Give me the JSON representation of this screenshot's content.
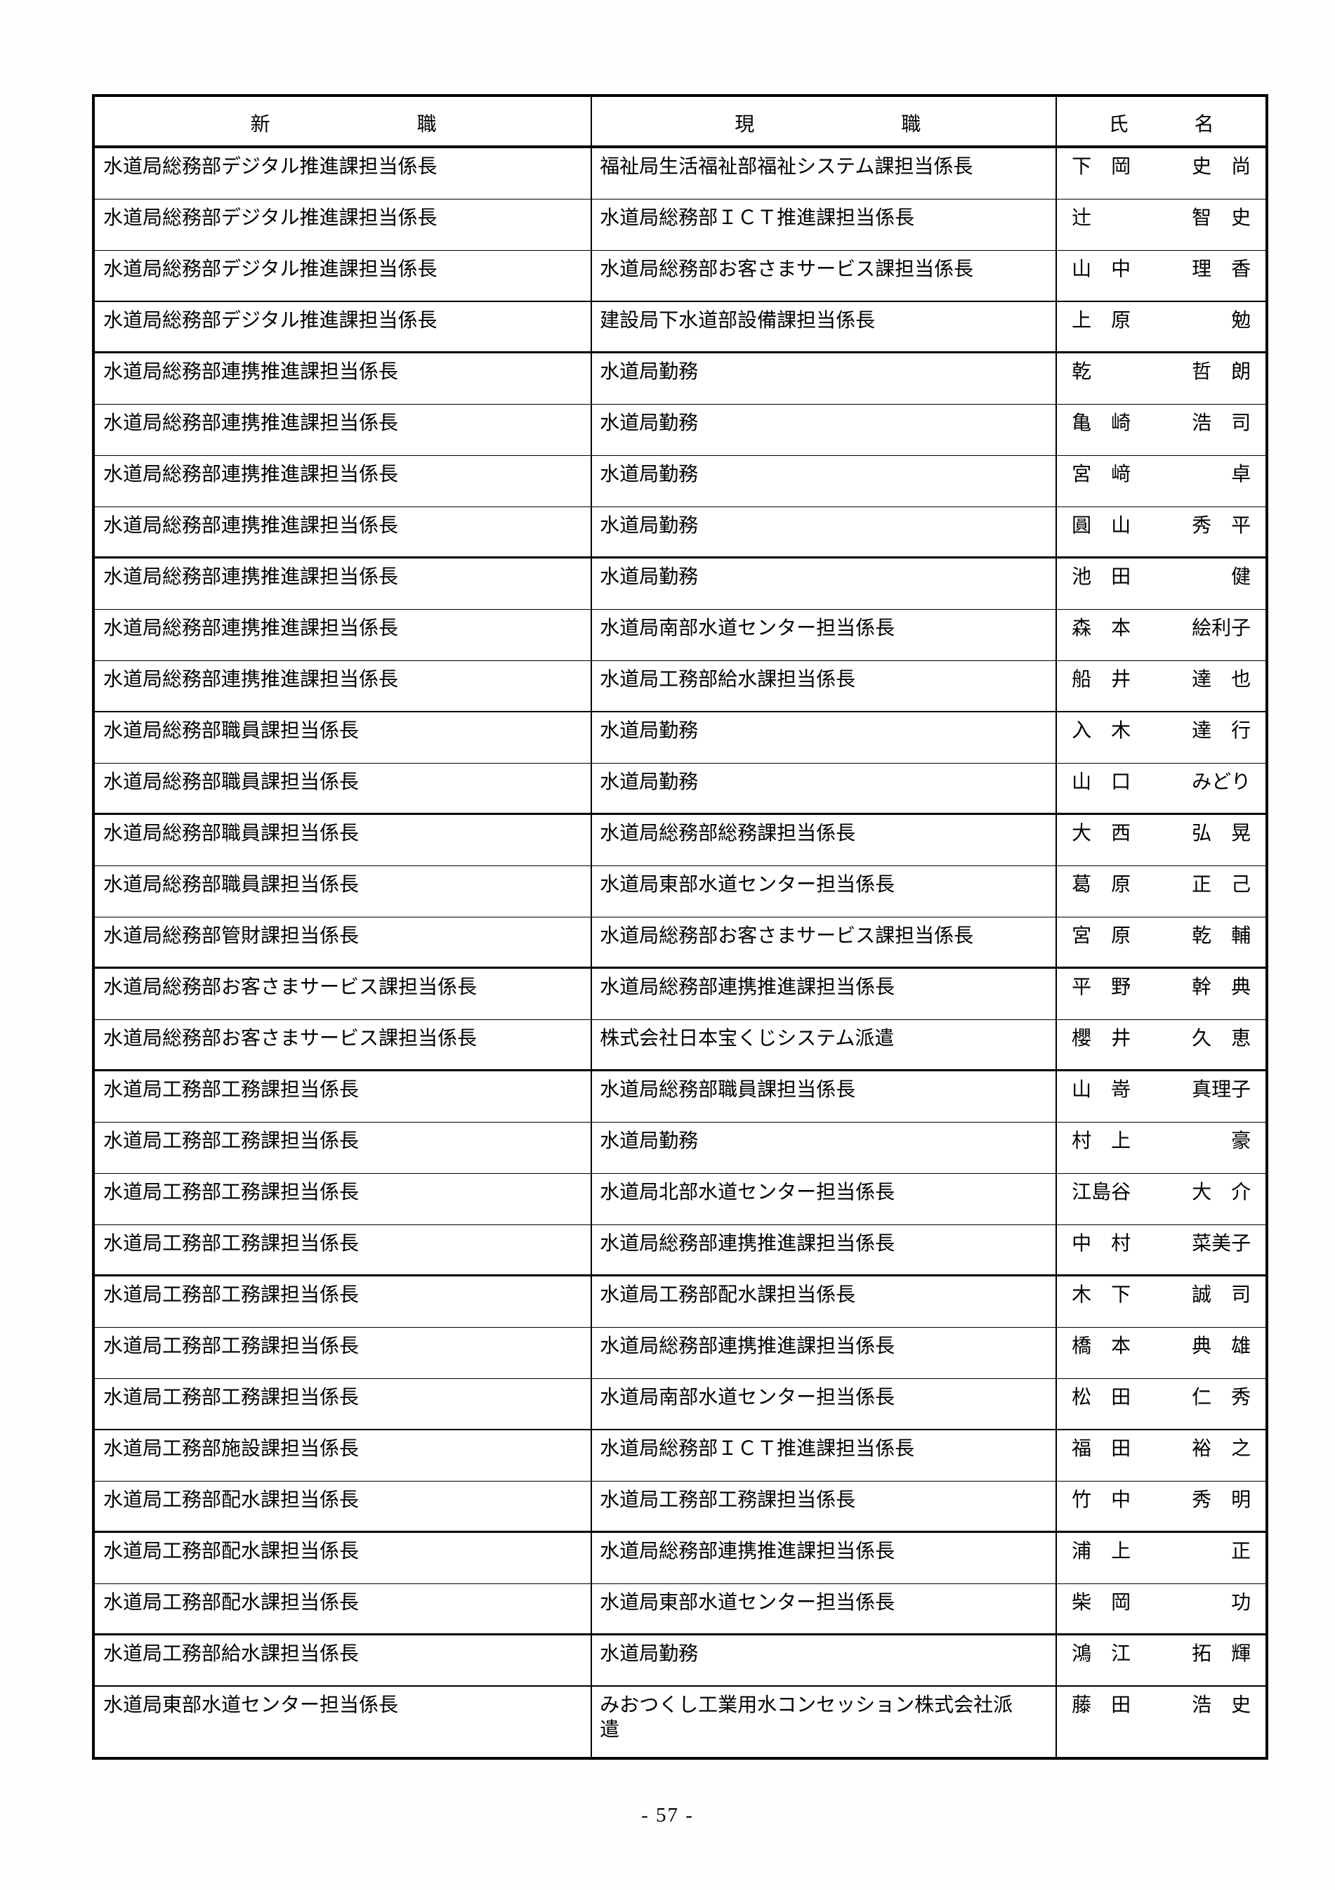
{
  "page": {
    "number_label": "- 57 -"
  },
  "table": {
    "headers": {
      "new_position": {
        "first": "新",
        "second": "職"
      },
      "current_position": {
        "first": "現",
        "second": "職"
      },
      "name": {
        "first": "氏",
        "second": "名"
      }
    },
    "rows": [
      {
        "new_position": "水道局総務部デジタル推進課担当係長",
        "current_position": "福祉局生活福祉部福祉システム課担当係長",
        "name_family": "下　岡",
        "name_given": "史　尚"
      },
      {
        "new_position": "水道局総務部デジタル推進課担当係長",
        "current_position": "水道局総務部ＩＣＴ推進課担当係長",
        "name_family": "辻",
        "name_given": "智　史"
      },
      {
        "new_position": "水道局総務部デジタル推進課担当係長",
        "current_position": "水道局総務部お客さまサービス課担当係長",
        "name_family": "山　中",
        "name_given": "理　香"
      },
      {
        "new_position": "水道局総務部デジタル推進課担当係長",
        "current_position": "建設局下水道部設備課担当係長",
        "name_family": "上　原",
        "name_given": "勉"
      },
      {
        "new_position": "水道局総務部連携推進課担当係長",
        "current_position": "水道局勤務",
        "name_family": "乾",
        "name_given": "哲　朗"
      },
      {
        "new_position": "水道局総務部連携推進課担当係長",
        "current_position": "水道局勤務",
        "name_family": "亀　崎",
        "name_given": "浩　司"
      },
      {
        "new_position": "水道局総務部連携推進課担当係長",
        "current_position": "水道局勤務",
        "name_family": "宮　﨑",
        "name_given": "卓"
      },
      {
        "new_position": "水道局総務部連携推進課担当係長",
        "current_position": "水道局勤務",
        "name_family": "圓　山",
        "name_given": "秀　平"
      },
      {
        "new_position": "水道局総務部連携推進課担当係長",
        "current_position": "水道局勤務",
        "name_family": "池　田",
        "name_given": "健"
      },
      {
        "new_position": "水道局総務部連携推進課担当係長",
        "current_position": "水道局南部水道センター担当係長",
        "name_family": "森　本",
        "name_given": "絵利子"
      },
      {
        "new_position": "水道局総務部連携推進課担当係長",
        "current_position": "水道局工務部給水課担当係長",
        "name_family": "船　井",
        "name_given": "達　也"
      },
      {
        "new_position": "水道局総務部職員課担当係長",
        "current_position": "水道局勤務",
        "name_family": "入　木",
        "name_given": "達　行"
      },
      {
        "new_position": "水道局総務部職員課担当係長",
        "current_position": "水道局勤務",
        "name_family": "山　口",
        "name_given": "みどり"
      },
      {
        "new_position": "水道局総務部職員課担当係長",
        "current_position": "水道局総務部総務課担当係長",
        "name_family": "大　西",
        "name_given": "弘　晃"
      },
      {
        "new_position": "水道局総務部職員課担当係長",
        "current_position": "水道局東部水道センター担当係長",
        "name_family": "葛　原",
        "name_given": "正　己"
      },
      {
        "new_position": "水道局総務部管財課担当係長",
        "current_position": "水道局総務部お客さまサービス課担当係長",
        "name_family": "宮　原",
        "name_given": "乾　輔"
      },
      {
        "new_position": "水道局総務部お客さまサービス課担当係長",
        "current_position": "水道局総務部連携推進課担当係長",
        "name_family": "平　野",
        "name_given": "幹　典"
      },
      {
        "new_position": "水道局総務部お客さまサービス課担当係長",
        "current_position": "株式会社日本宝くじシステム派遣",
        "name_family": "櫻　井",
        "name_given": "久　恵"
      },
      {
        "new_position": "水道局工務部工務課担当係長",
        "current_position": "水道局総務部職員課担当係長",
        "name_family": "山　嵜",
        "name_given": "真理子"
      },
      {
        "new_position": "水道局工務部工務課担当係長",
        "current_position": "水道局勤務",
        "name_family": "村　上",
        "name_given": "豪"
      },
      {
        "new_position": "水道局工務部工務課担当係長",
        "current_position": "水道局北部水道センター担当係長",
        "name_family": "江島谷",
        "name_given": "大　介"
      },
      {
        "new_position": "水道局工務部工務課担当係長",
        "current_position": "水道局総務部連携推進課担当係長",
        "name_family": "中　村",
        "name_given": "菜美子"
      },
      {
        "new_position": "水道局工務部工務課担当係長",
        "current_position": "水道局工務部配水課担当係長",
        "name_family": "木　下",
        "name_given": "誠　司"
      },
      {
        "new_position": "水道局工務部工務課担当係長",
        "current_position": "水道局総務部連携推進課担当係長",
        "name_family": "橋　本",
        "name_given": "典　雄"
      },
      {
        "new_position": "水道局工務部工務課担当係長",
        "current_position": "水道局南部水道センター担当係長",
        "name_family": "松　田",
        "name_given": "仁　秀"
      },
      {
        "new_position": "水道局工務部施設課担当係長",
        "current_position": "水道局総務部ＩＣＴ推進課担当係長",
        "name_family": "福　田",
        "name_given": "裕　之"
      },
      {
        "new_position": "水道局工務部配水課担当係長",
        "current_position": "水道局工務部工務課担当係長",
        "name_family": "竹　中",
        "name_given": "秀　明"
      },
      {
        "new_position": "水道局工務部配水課担当係長",
        "current_position": "水道局総務部連携推進課担当係長",
        "name_family": "浦　上",
        "name_given": "正"
      },
      {
        "new_position": "水道局工務部配水課担当係長",
        "current_position": "水道局東部水道センター担当係長",
        "name_family": "柴　岡",
        "name_given": "功"
      },
      {
        "new_position": "水道局工務部給水課担当係長",
        "current_position": "水道局勤務",
        "name_family": "鴻　江",
        "name_given": "拓　輝"
      },
      {
        "new_position": "水道局東部水道センター担当係長",
        "current_position": "みおつくし工業用水コンセッション株式会社派遣",
        "name_family": "藤　田",
        "name_given": "浩　史"
      }
    ]
  }
}
